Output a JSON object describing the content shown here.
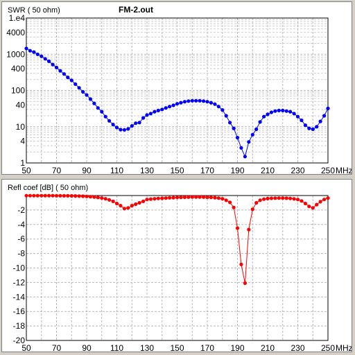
{
  "file_name": "FM-2.out",
  "chart_data": [
    {
      "type": "line",
      "title": "FM-2.out",
      "ylabel": "SWR ( 50 ohm)",
      "x_unit": "MHz",
      "xlim": [
        50,
        250
      ],
      "x_ticks": [
        "50",
        "70",
        "90",
        "110",
        "130",
        "150",
        "170",
        "190",
        "210",
        "230",
        "250"
      ],
      "y_scale": "log",
      "ylim": [
        1,
        10000
      ],
      "y_ticks": [
        {
          "value": 10000,
          "label": "1.e4"
        },
        {
          "value": 4000,
          "label": "4000"
        },
        {
          "value": 1000,
          "label": "1000"
        },
        {
          "value": 400,
          "label": "400"
        },
        {
          "value": 100,
          "label": "100"
        },
        {
          "value": 40,
          "label": "40"
        },
        {
          "value": 10,
          "label": "10"
        },
        {
          "value": 4,
          "label": "4"
        },
        {
          "value": 1,
          "label": "1"
        }
      ],
      "grid": true,
      "color": "#0000ff",
      "x": [
        50,
        52.5,
        55,
        57.5,
        60,
        62.5,
        65,
        67.5,
        70,
        72.5,
        75,
        77.5,
        80,
        82.5,
        85,
        87.5,
        90,
        92.5,
        95,
        97.5,
        100,
        102.5,
        105,
        107.5,
        110,
        112.5,
        115,
        117.5,
        120,
        122.5,
        125,
        127.5,
        130,
        132.5,
        135,
        137.5,
        140,
        142.5,
        145,
        147.5,
        150,
        152.5,
        155,
        157.5,
        160,
        162.5,
        165,
        167.5,
        170,
        172.5,
        175,
        177.5,
        180,
        182.5,
        185,
        187.5,
        190,
        192.5,
        195,
        197.5,
        200,
        202.5,
        205,
        207.5,
        210,
        212.5,
        215,
        217.5,
        220,
        222.5,
        225,
        227.5,
        230,
        232.5,
        235,
        237.5,
        240,
        242.5,
        245,
        247.5,
        250
      ],
      "values": [
        1450,
        1250,
        1150,
        1000,
        880,
        750,
        640,
        520,
        430,
        350,
        285,
        230,
        190,
        150,
        118,
        92,
        75,
        58,
        44,
        33,
        26,
        19,
        14.5,
        11.5,
        9.5,
        8.3,
        8.2,
        8.7,
        10.5,
        12.5,
        13,
        17.5,
        21,
        23,
        26,
        28,
        30,
        33,
        36,
        39,
        43,
        46,
        49,
        51,
        52,
        52,
        52,
        51,
        49,
        46,
        42,
        36,
        29,
        20,
        13,
        9,
        5,
        2.6,
        1.5,
        3.8,
        6,
        8.5,
        13.5,
        19,
        22,
        25,
        27,
        28,
        28,
        27,
        26,
        23,
        19,
        15,
        11,
        9,
        8.5,
        10,
        14,
        20,
        32
      ]
    },
    {
      "type": "line",
      "ylabel": "Refl coef [dB] ( 50 ohm)",
      "x_unit": "MHz",
      "xlim": [
        50,
        250
      ],
      "x_ticks": [
        "50",
        "70",
        "90",
        "110",
        "130",
        "150",
        "170",
        "190",
        "210",
        "230",
        "250"
      ],
      "ylim": [
        -20,
        0
      ],
      "y_ticks": [
        "-2",
        "-4",
        "-6",
        "-8",
        "-10",
        "-12",
        "-14",
        "-16",
        "-18",
        "-20"
      ],
      "grid": true,
      "color": "#ff0000",
      "x": [
        50,
        52.5,
        55,
        57.5,
        60,
        62.5,
        65,
        67.5,
        70,
        72.5,
        75,
        77.5,
        80,
        82.5,
        85,
        87.5,
        90,
        92.5,
        95,
        97.5,
        100,
        102.5,
        105,
        107.5,
        110,
        112.5,
        115,
        117.5,
        120,
        122.5,
        125,
        127.5,
        130,
        132.5,
        135,
        137.5,
        140,
        142.5,
        145,
        147.5,
        150,
        152.5,
        155,
        157.5,
        160,
        162.5,
        165,
        167.5,
        170,
        172.5,
        175,
        177.5,
        180,
        182.5,
        185,
        187.5,
        190,
        192.5,
        195,
        197.5,
        200,
        202.5,
        205,
        207.5,
        210,
        212.5,
        215,
        217.5,
        220,
        222.5,
        225,
        227.5,
        230,
        232.5,
        235,
        237.5,
        240,
        242.5,
        245,
        247.5,
        250
      ],
      "values": [
        -0.02,
        -0.02,
        -0.02,
        -0.02,
        -0.02,
        -0.02,
        -0.02,
        -0.02,
        -0.03,
        -0.03,
        -0.04,
        -0.04,
        -0.05,
        -0.06,
        -0.08,
        -0.1,
        -0.12,
        -0.16,
        -0.2,
        -0.27,
        -0.34,
        -0.45,
        -0.6,
        -0.8,
        -1.1,
        -1.4,
        -1.8,
        -1.7,
        -1.4,
        -1.2,
        -1.0,
        -0.8,
        -0.55,
        -0.5,
        -0.45,
        -0.4,
        -0.38,
        -0.35,
        -0.32,
        -0.3,
        -0.27,
        -0.25,
        -0.24,
        -0.22,
        -0.21,
        -0.21,
        -0.21,
        -0.22,
        -0.24,
        -0.26,
        -0.3,
        -0.35,
        -0.45,
        -0.65,
        -0.95,
        -1.65,
        -4.5,
        -9.5,
        -12.1,
        -4.7,
        -1.9,
        -1.0,
        -0.65,
        -0.5,
        -0.42,
        -0.38,
        -0.36,
        -0.35,
        -0.35,
        -0.37,
        -0.4,
        -0.46,
        -0.55,
        -0.75,
        -1.1,
        -1.5,
        -1.7,
        -1.25,
        -0.85,
        -0.55,
        -0.35
      ]
    }
  ]
}
